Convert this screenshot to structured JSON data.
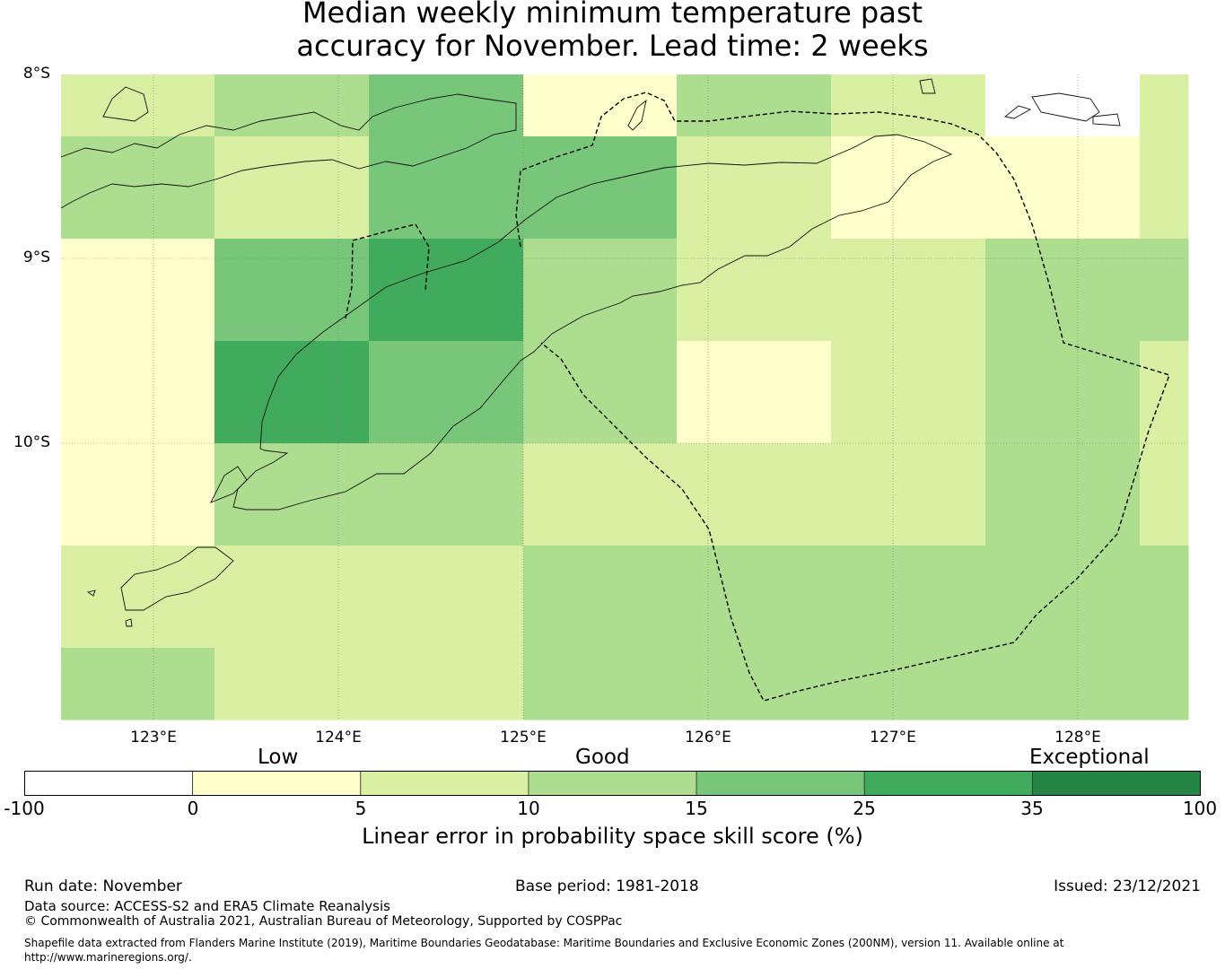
{
  "title": {
    "line1": "Median weekly minimum temperature past",
    "line2": "accuracy for November. Lead time: 2 weeks"
  },
  "map": {
    "lat_labels": [
      "8°S",
      "9°S",
      "10°S"
    ],
    "lon_labels": [
      "123°E",
      "124°E",
      "125°E",
      "126°E",
      "127°E",
      "128°E"
    ],
    "grid_skill_bins": [
      [
        "5-10",
        "10-15",
        "15-25",
        "0-5",
        "10-15",
        "5-10",
        "none",
        "5-10"
      ],
      [
        "10-15",
        "5-10",
        "15-25",
        "15-25",
        "5-10",
        "0-5",
        "0-5",
        "5-10"
      ],
      [
        "0-5",
        "15-25",
        "25-35",
        "10-15",
        "5-10",
        "5-10",
        "10-15",
        "10-15"
      ],
      [
        "0-5",
        "25-35",
        "15-25",
        "10-15",
        "0-5",
        "5-10",
        "10-15",
        "5-10"
      ],
      [
        "0-5",
        "10-15",
        "10-15",
        "5-10",
        "5-10",
        "5-10",
        "10-15",
        "5-10"
      ],
      [
        "5-10",
        "5-10",
        "5-10",
        "10-15",
        "10-15",
        "10-15",
        "10-15",
        "10-15"
      ],
      [
        "10-15",
        "5-10",
        "5-10",
        "10-15",
        "10-15",
        "10-15",
        "10-15",
        "10-15"
      ]
    ]
  },
  "legend": {
    "categories": [
      "Low",
      "Good",
      "Exceptional"
    ],
    "ticks": [
      "-100",
      "0",
      "5",
      "10",
      "15",
      "25",
      "35",
      "100"
    ],
    "colors": [
      "#ffffff",
      "#ffffcc",
      "#d9f0a3",
      "#addd8e",
      "#78c679",
      "#41ab5d",
      "#238443"
    ],
    "label": "Linear error in probability space skill score (%)"
  },
  "footer": {
    "run_date": "Run date: November",
    "base_period": "Base period: 1981-2018",
    "issued": "Issued: 23/12/2021",
    "data_source": "Data source: ACCESS-S2 and ERA5 Climate Reanalysis",
    "copyright": "© Commonwealth of Australia 2021, Australian Bureau of Meteorology, Supported by COSPPac",
    "shapefile": "Shapefile data extracted from Flanders Marine Institute (2019), Maritime Boundaries Geodatabase: Maritime Boundaries and Exclusive Economic Zones (200NM), version 11. Available online at http://www.marineregions.org/."
  }
}
